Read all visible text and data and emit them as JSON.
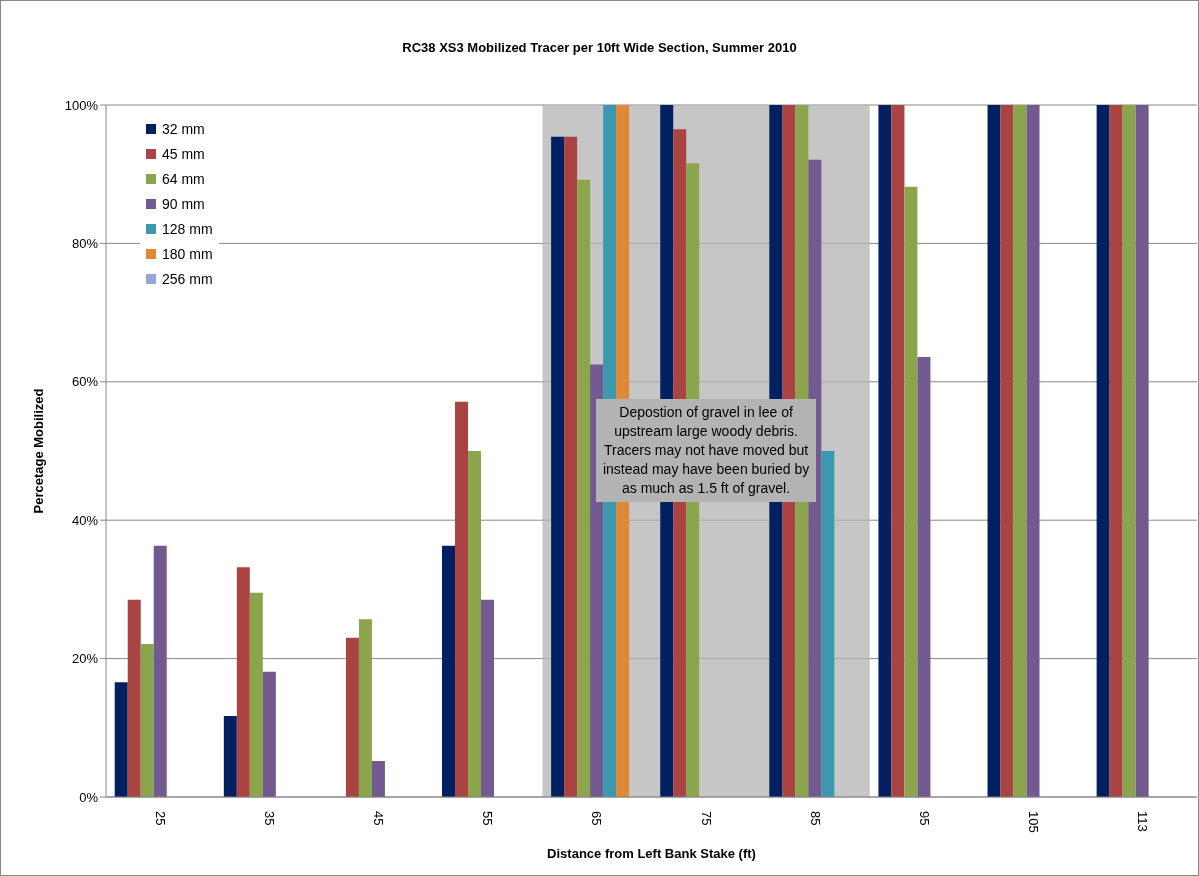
{
  "chart_data": {
    "type": "bar",
    "title": "RC38 XS3 Mobilized Tracer per 10ft Wide Section, Summer 2010",
    "xlabel": "Distance from Left Bank Stake (ft)",
    "ylabel": "Percetage Mobilized",
    "categories": [
      "25",
      "35",
      "45",
      "55",
      "65",
      "75",
      "85",
      "95",
      "105",
      "113"
    ],
    "series": [
      {
        "name": "32 mm",
        "color": "#002060",
        "values": [
          16.6,
          11.7,
          null,
          36.3,
          95.4,
          100,
          100,
          100,
          100,
          100
        ]
      },
      {
        "name": "45 mm",
        "color": "#a94442",
        "values": [
          28.5,
          33.2,
          23.0,
          57.1,
          95.4,
          96.5,
          100,
          100,
          100,
          100
        ]
      },
      {
        "name": "64 mm",
        "color": "#8ba54c",
        "values": [
          22.1,
          29.5,
          25.7,
          50.0,
          89.2,
          91.6,
          100,
          88.2,
          100,
          100
        ]
      },
      {
        "name": "90 mm",
        "color": "#72598f",
        "values": [
          36.3,
          18.1,
          5.2,
          28.5,
          62.5,
          null,
          92.1,
          63.6,
          100,
          100
        ]
      },
      {
        "name": "128 mm",
        "color": "#3b98ae",
        "values": [
          null,
          null,
          null,
          null,
          100,
          null,
          50.0,
          null,
          null,
          null
        ]
      },
      {
        "name": "180 mm",
        "color": "#e0883a",
        "values": [
          null,
          null,
          null,
          null,
          100,
          null,
          null,
          null,
          null,
          null
        ]
      },
      {
        "name": "256 mm",
        "color": "#93a9d4",
        "values": [
          null,
          null,
          null,
          null,
          null,
          null,
          null,
          null,
          null,
          null
        ]
      }
    ],
    "ylim": [
      0,
      100
    ],
    "yticks": [
      {
        "value": 0,
        "label": "0%"
      },
      {
        "value": 20,
        "label": "20%"
      },
      {
        "value": 40,
        "label": "40%"
      },
      {
        "value": 60,
        "label": "60%"
      },
      {
        "value": 80,
        "label": "80%"
      },
      {
        "value": 100,
        "label": "100%"
      }
    ],
    "grid": "y",
    "legend": "top left",
    "bands": [
      {
        "axis": "x",
        "from": "65",
        "to": "85",
        "label": "Depostion of gravel in lee of upstream large woody debris. Tracers may not have moved but instead may have been buried by as much as 1.5 ft of gravel.",
        "color": "#b3b3b3"
      }
    ]
  }
}
